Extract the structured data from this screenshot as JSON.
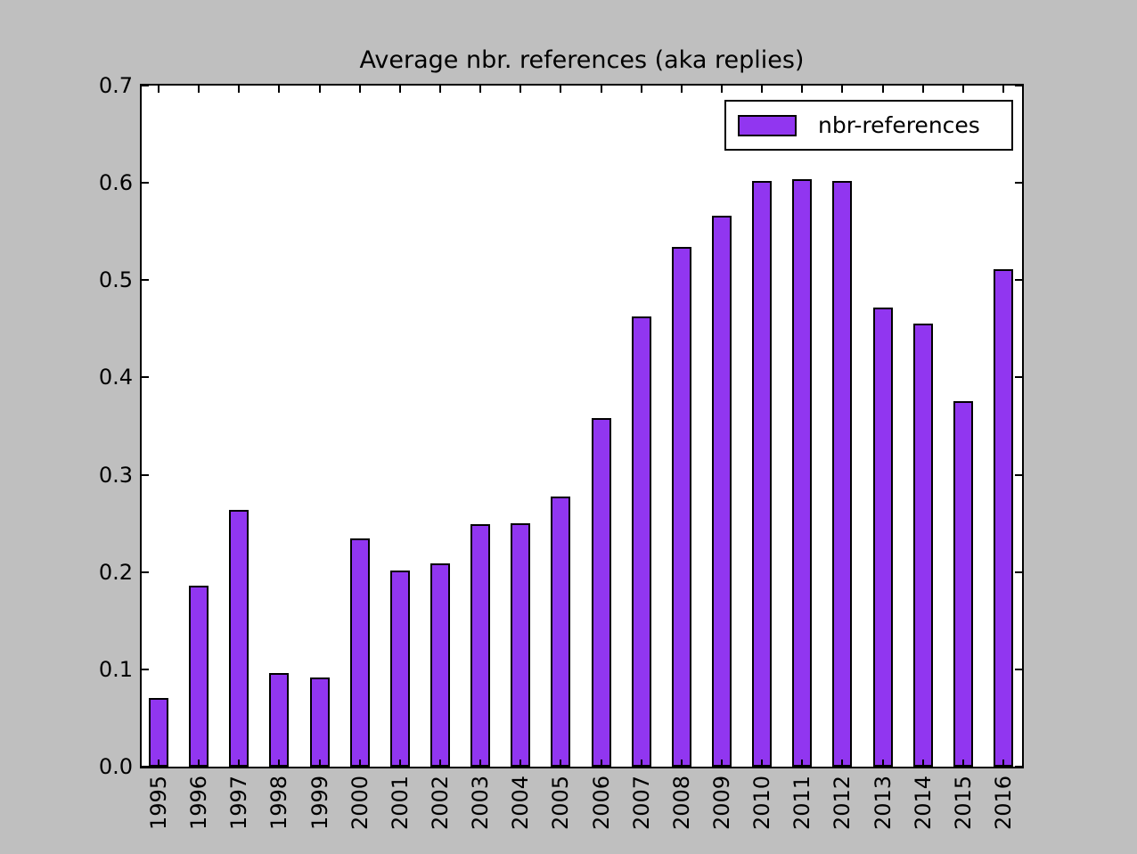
{
  "figure": {
    "background_color": "#bfbfbf",
    "plot_background_color": "#ffffff"
  },
  "chart_data": {
    "type": "bar",
    "title": "Average nbr. references (aka replies)",
    "categories": [
      "1995",
      "1996",
      "1997",
      "1998",
      "1999",
      "2000",
      "2001",
      "2002",
      "2003",
      "2004",
      "2005",
      "2006",
      "2007",
      "2008",
      "2009",
      "2010",
      "2011",
      "2012",
      "2013",
      "2014",
      "2015",
      "2016"
    ],
    "values": [
      0.071,
      0.186,
      0.264,
      0.096,
      0.092,
      0.235,
      0.202,
      0.209,
      0.249,
      0.25,
      0.278,
      0.358,
      0.463,
      0.534,
      0.566,
      0.602,
      0.604,
      0.602,
      0.472,
      0.455,
      0.376,
      0.511
    ],
    "series_name": "nbr-references",
    "legend": {
      "entries": [
        "nbr-references"
      ],
      "position": "upper right"
    },
    "xlabel": "",
    "ylabel": "",
    "ylim": [
      0.0,
      0.7
    ],
    "yticks": [
      "0.0",
      "0.1",
      "0.2",
      "0.3",
      "0.4",
      "0.5",
      "0.6",
      "0.7"
    ],
    "x_tick_rotation": 90,
    "grid": false,
    "bar_color": "#9136f0",
    "bar_edge_color": "#000000",
    "axis_color": "#000000"
  }
}
